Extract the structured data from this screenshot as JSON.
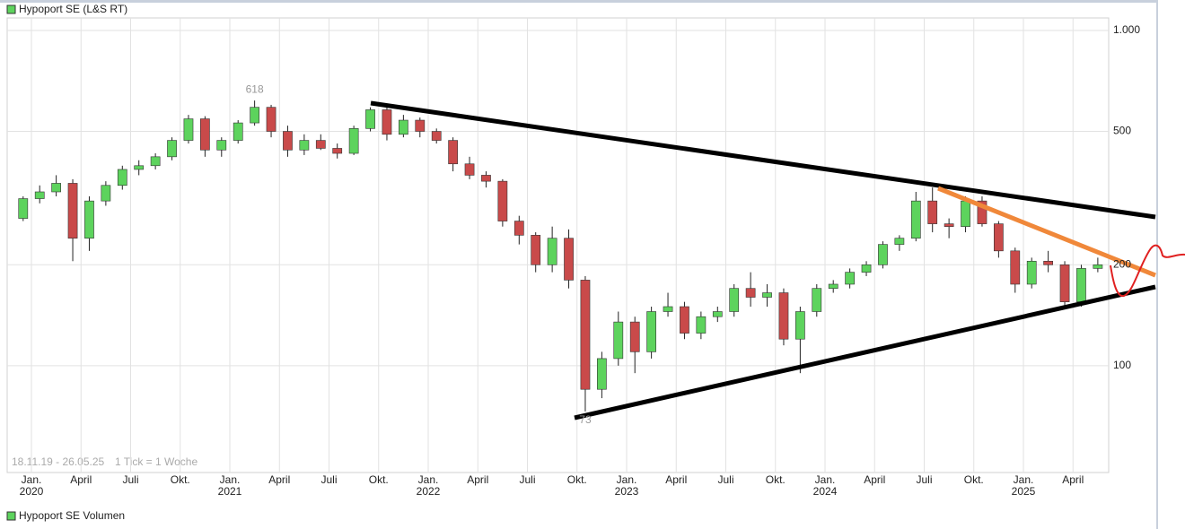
{
  "chart_data": {
    "type": "candlestick",
    "title": "Hypoport SE (L&S RT)",
    "subtitle": "Hypoport SE Volumen",
    "range_text": "18.11.19 - 26.05.25",
    "interval_text": "1 Tick = 1 Woche",
    "max_label": 618,
    "min_label": 73,
    "log_scale": true,
    "grid": true,
    "up_color": "#5dd35d",
    "down_color": "#c94a4a",
    "x": [
      "2019-12",
      "2020-01",
      "2020-02",
      "2020-03",
      "2020-04",
      "2020-05",
      "2020-06",
      "2020-07",
      "2020-08",
      "2020-09",
      "2020-10",
      "2020-11",
      "2020-12",
      "2021-01",
      "2021-02",
      "2021-03",
      "2021-04",
      "2021-05",
      "2021-06",
      "2021-07",
      "2021-08",
      "2021-09",
      "2021-10",
      "2021-11",
      "2021-12",
      "2022-01",
      "2022-02",
      "2022-03",
      "2022-04",
      "2022-05",
      "2022-06",
      "2022-07",
      "2022-08",
      "2022-09",
      "2022-10",
      "2022-11",
      "2022-12",
      "2023-01",
      "2023-02",
      "2023-03",
      "2023-04",
      "2023-05",
      "2023-06",
      "2023-07",
      "2023-08",
      "2023-09",
      "2023-10",
      "2023-11",
      "2023-12",
      "2024-01",
      "2024-02",
      "2024-03",
      "2024-04",
      "2024-05",
      "2024-06",
      "2024-07",
      "2024-08",
      "2024-09",
      "2024-10",
      "2024-11",
      "2024-12",
      "2025-01",
      "2025-02",
      "2025-03",
      "2025-04",
      "2025-05"
    ],
    "open": [
      275,
      315,
      330,
      350,
      240,
      310,
      345,
      385,
      395,
      420,
      470,
      545,
      440,
      470,
      530,
      590,
      500,
      440,
      470,
      445,
      430,
      510,
      580,
      490,
      540,
      500,
      470,
      400,
      370,
      355,
      270,
      245,
      200,
      240,
      180,
      85,
      105,
      135,
      110,
      145,
      150,
      125,
      140,
      145,
      170,
      160,
      165,
      120,
      145,
      170,
      175,
      190,
      200,
      230,
      240,
      310,
      265,
      260,
      310,
      265,
      220,
      175,
      205,
      200,
      155,
      195
    ],
    "high": [
      320,
      345,
      370,
      360,
      320,
      355,
      395,
      410,
      430,
      480,
      560,
      555,
      480,
      540,
      618,
      600,
      520,
      490,
      490,
      460,
      520,
      590,
      590,
      560,
      550,
      510,
      480,
      420,
      380,
      360,
      280,
      250,
      260,
      255,
      185,
      110,
      145,
      140,
      150,
      165,
      155,
      145,
      150,
      175,
      190,
      175,
      170,
      150,
      175,
      180,
      195,
      205,
      235,
      245,
      330,
      340,
      275,
      320,
      320,
      270,
      225,
      210,
      220,
      205,
      200,
      210
    ],
    "low": [
      270,
      305,
      320,
      205,
      220,
      300,
      335,
      370,
      385,
      410,
      460,
      420,
      420,
      460,
      520,
      480,
      420,
      425,
      440,
      415,
      425,
      500,
      470,
      480,
      480,
      460,
      380,
      360,
      340,
      260,
      230,
      190,
      190,
      170,
      73,
      80,
      100,
      95,
      105,
      140,
      120,
      120,
      135,
      140,
      150,
      150,
      115,
      95,
      140,
      165,
      170,
      185,
      195,
      220,
      235,
      250,
      240,
      250,
      260,
      210,
      165,
      170,
      190,
      150,
      150,
      190
    ],
    "close": [
      315,
      330,
      350,
      240,
      310,
      345,
      385,
      395,
      420,
      470,
      545,
      440,
      470,
      530,
      590,
      500,
      440,
      470,
      445,
      430,
      510,
      580,
      490,
      540,
      500,
      470,
      400,
      370,
      355,
      270,
      245,
      200,
      240,
      180,
      85,
      105,
      135,
      110,
      145,
      150,
      125,
      140,
      145,
      170,
      160,
      165,
      120,
      145,
      170,
      175,
      190,
      200,
      230,
      240,
      310,
      265,
      260,
      310,
      265,
      220,
      175,
      205,
      200,
      155,
      195,
      200
    ],
    "ylim": [
      48,
      1090
    ],
    "yticks": [
      {
        "value": 1000,
        "label": "1.000"
      },
      500,
      200,
      100
    ],
    "xticks": [
      {
        "value": "2020-01",
        "label": "Jan."
      },
      {
        "value": "2020-04",
        "label": "April"
      },
      {
        "value": "2020-07",
        "label": "Juli"
      },
      {
        "value": "2020-10",
        "label": "Okt."
      },
      {
        "value": "2021-01",
        "label": "Jan."
      },
      {
        "value": "2021-04",
        "label": "April"
      },
      {
        "value": "2021-07",
        "label": "Juli"
      },
      {
        "value": "2021-10",
        "label": "Okt."
      },
      {
        "value": "2022-01",
        "label": "Jan."
      },
      {
        "value": "2022-04",
        "label": "April"
      },
      {
        "value": "2022-07",
        "label": "Juli"
      },
      {
        "value": "2022-10",
        "label": "Okt."
      },
      {
        "value": "2023-01",
        "label": "Jan."
      },
      {
        "value": "2023-04",
        "label": "April"
      },
      {
        "value": "2023-07",
        "label": "Juli"
      },
      {
        "value": "2023-10",
        "label": "Okt."
      },
      {
        "value": "2024-01",
        "label": "Jan."
      },
      {
        "value": "2024-04",
        "label": "April"
      },
      {
        "value": "2024-07",
        "label": "Juli"
      },
      {
        "value": "2024-10",
        "label": "Okt."
      },
      {
        "value": "2025-01",
        "label": "Jan."
      },
      {
        "value": "2025-04",
        "label": "April"
      }
    ],
    "x_year_labels": [
      {
        "value": "2020-01",
        "label": "2020"
      },
      {
        "value": "2021-01",
        "label": "2021"
      },
      {
        "value": "2022-01",
        "label": "2022"
      },
      {
        "value": "2023-01",
        "label": "2023"
      },
      {
        "value": "2024-01",
        "label": "2024"
      },
      {
        "value": "2025-01",
        "label": "2025"
      }
    ]
  }
}
